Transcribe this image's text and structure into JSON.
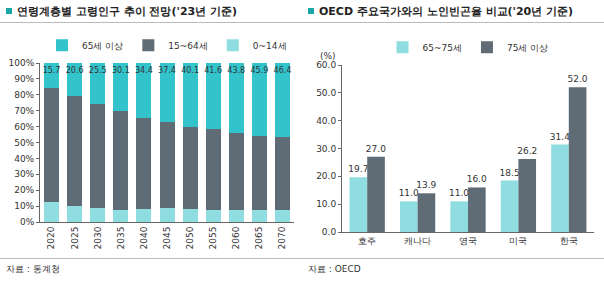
{
  "chart_data": [
    {
      "type": "bar",
      "title": "연령계층별 고령인구 추이 전망('23년 기준)",
      "source": "자료 : 통계청",
      "stacked": true,
      "grid": false,
      "legend": "top",
      "categories": [
        "2020",
        "2025",
        "2030",
        "2035",
        "2040",
        "2045",
        "2050",
        "2055",
        "2060",
        "2065",
        "2070"
      ],
      "series": [
        {
          "name": "0~14세",
          "color": "#8fdde0",
          "data_labels": false,
          "values": [
            12.3,
            10.2,
            8.5,
            7.8,
            8.2,
            8.5,
            8.1,
            7.6,
            7.4,
            7.3,
            7.5
          ]
        },
        {
          "name": "15~64세",
          "color": "#5f6b75",
          "data_labels": false,
          "values": [
            72.0,
            69.2,
            66.0,
            62.1,
            57.4,
            54.1,
            51.8,
            50.8,
            48.8,
            46.8,
            46.1
          ]
        },
        {
          "name": "65세 이상",
          "color": "#33c3cb",
          "data_labels": true,
          "values": [
            15.7,
            20.6,
            25.5,
            30.1,
            34.4,
            37.4,
            40.1,
            41.6,
            43.8,
            45.9,
            46.4
          ]
        }
      ],
      "ylim": [
        0,
        100
      ],
      "yticks": [
        {
          "value": 0,
          "label": "0%"
        },
        {
          "value": 10,
          "label": "10%"
        },
        {
          "value": 20,
          "label": "20%"
        },
        {
          "value": 30,
          "label": "30%"
        },
        {
          "value": 40,
          "label": "40%"
        },
        {
          "value": 50,
          "label": "50%"
        },
        {
          "value": 60,
          "label": "60%"
        },
        {
          "value": 70,
          "label": "70%"
        },
        {
          "value": 80,
          "label": "80%"
        },
        {
          "value": 90,
          "label": "90%"
        },
        {
          "value": 100,
          "label": "100%"
        }
      ]
    },
    {
      "type": "bar",
      "title": "OECD 주요국가와의 노인빈곤율 비교('20년 기준)",
      "source": "자료 : OECD",
      "ylabel": "(%)",
      "stacked": false,
      "grid": false,
      "legend": "top",
      "categories": [
        "호주",
        "캐나다",
        "영국",
        "미국",
        "한국"
      ],
      "series": [
        {
          "name": "65~75세",
          "color": "#8fdde0",
          "data_labels": true,
          "values": [
            19.7,
            11.0,
            11.0,
            18.5,
            31.4
          ],
          "value_labels": [
            "19.7",
            "11.0",
            "11.0",
            "18.5",
            "31.4"
          ]
        },
        {
          "name": "75세 이상",
          "color": "#5f6b75",
          "data_labels": true,
          "values": [
            27.0,
            13.9,
            16.0,
            26.2,
            52.0
          ],
          "value_labels": [
            "27.0",
            "13.9",
            "16.0",
            "26.2",
            "52.0"
          ]
        }
      ],
      "ylim": [
        0,
        60
      ],
      "yticks": [
        {
          "value": 0,
          "label": "0.0"
        },
        {
          "value": 10,
          "label": "10.0"
        },
        {
          "value": 20,
          "label": "20.0"
        },
        {
          "value": 30,
          "label": "30.0"
        },
        {
          "value": 40,
          "label": "40.0"
        },
        {
          "value": 50,
          "label": "50.0"
        },
        {
          "value": 60,
          "label": "60.0"
        }
      ]
    }
  ]
}
